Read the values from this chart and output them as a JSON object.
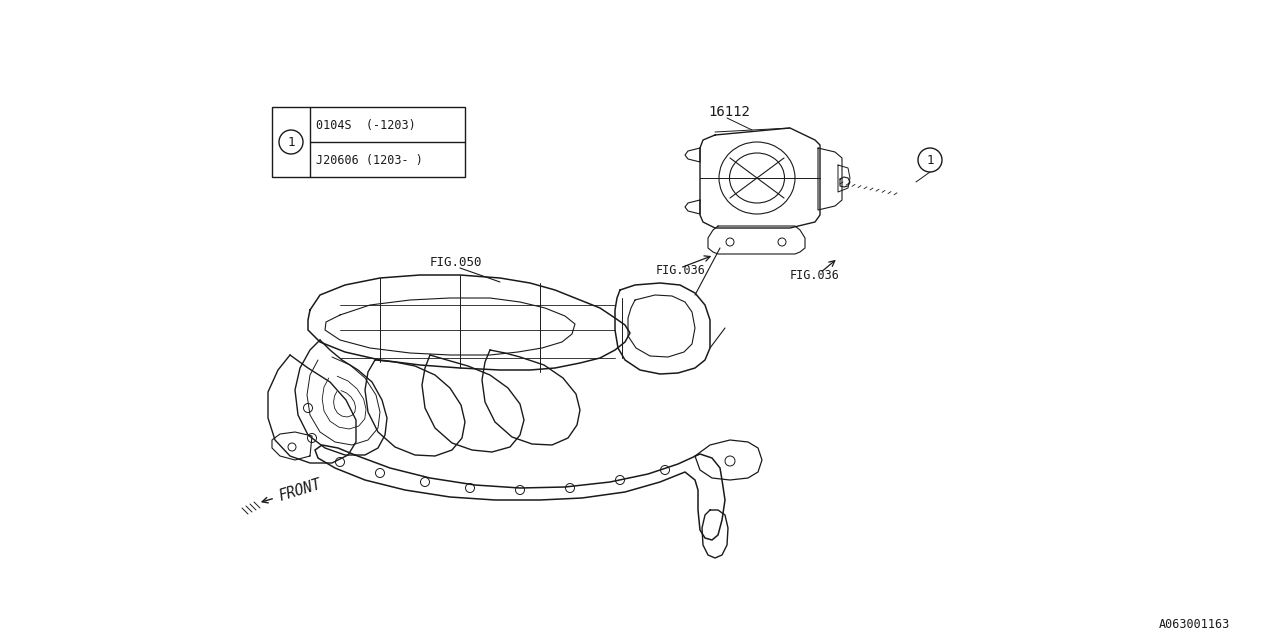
{
  "bg_color": "#ffffff",
  "line_color": "#1a1a1a",
  "fig_width": 12.8,
  "fig_height": 6.4,
  "watermark": "A063001163",
  "part_number_label": "16112",
  "fig050_label": "FIG.050",
  "fig036_label_1": "FIG.036",
  "fig036_label_2": "FIG.036",
  "front_label": "FRONT",
  "table_row1": "0104S  (-1203)",
  "table_row2": "J20606 (1203- )",
  "font_family": "DejaVu Sans Mono"
}
